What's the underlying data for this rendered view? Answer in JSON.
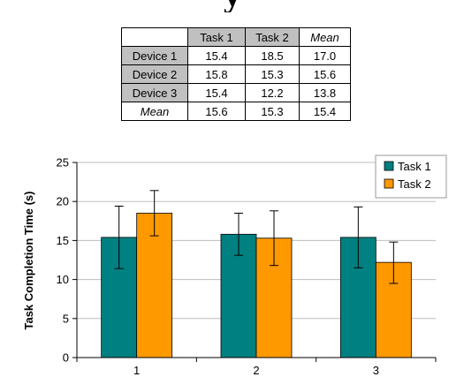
{
  "table": {
    "corner": "",
    "columns": [
      "Task 1",
      "Task 2",
      "Mean"
    ],
    "rows": [
      {
        "label": "Device 1",
        "values": [
          "15.4",
          "18.5",
          "17.0"
        ]
      },
      {
        "label": "Device 2",
        "values": [
          "15.8",
          "15.3",
          "15.6"
        ]
      },
      {
        "label": "Device 3",
        "values": [
          "15.4",
          "12.2",
          "13.8"
        ]
      },
      {
        "label": "Mean",
        "values": [
          "15.6",
          "15.3",
          "15.4"
        ]
      }
    ]
  },
  "chart_data": {
    "type": "bar",
    "title": "",
    "xlabel": "",
    "ylabel": "Task Completion Time (s)",
    "categories": [
      "1",
      "2",
      "3"
    ],
    "ylim": [
      0,
      25
    ],
    "yticks": [
      0,
      5,
      10,
      15,
      20,
      25
    ],
    "grid": true,
    "legend": "top-right",
    "series": [
      {
        "name": "Task 1",
        "color": "#008080",
        "values": [
          15.4,
          15.8,
          15.4
        ],
        "error_low": [
          11.4,
          13.1,
          11.5
        ],
        "error_high": [
          19.4,
          18.5,
          19.3
        ]
      },
      {
        "name": "Task 2",
        "color": "#FF9900",
        "values": [
          18.5,
          15.3,
          12.2
        ],
        "error_low": [
          15.6,
          11.8,
          9.5
        ],
        "error_high": [
          21.4,
          18.8,
          14.8
        ]
      }
    ]
  }
}
